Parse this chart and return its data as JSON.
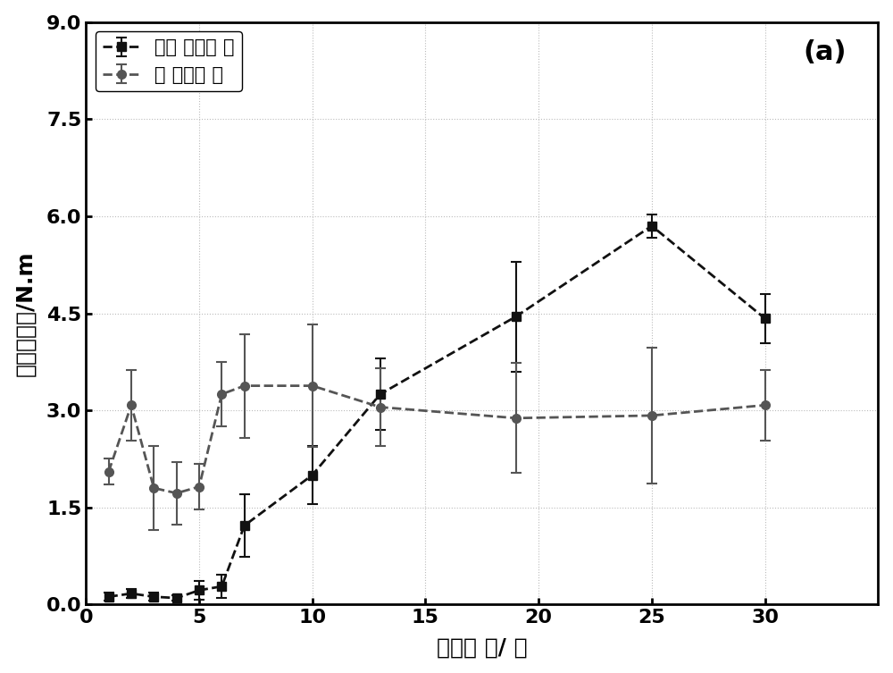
{
  "title_label": "(a)",
  "xlabel": "固化时 间/ 天",
  "ylabel": "平均破坏力/N.m",
  "xlim": [
    0,
    35
  ],
  "ylim": [
    0,
    9.0
  ],
  "xticks": [
    0,
    5,
    10,
    15,
    20,
    25,
    30
  ],
  "yticks": [
    0.0,
    1.5,
    3.0,
    4.5,
    6.0,
    7.5,
    9.0
  ],
  "series1_label": "未包 覆密封 胶",
  "series1_x": [
    1,
    2,
    3,
    4,
    5,
    6,
    7,
    10,
    13,
    19,
    25,
    30
  ],
  "series1_y": [
    0.12,
    0.17,
    0.12,
    0.1,
    0.22,
    0.28,
    1.22,
    2.0,
    3.25,
    4.45,
    5.85,
    4.42
  ],
  "series1_yerr": [
    0.06,
    0.07,
    0.06,
    0.04,
    0.15,
    0.18,
    0.48,
    0.45,
    0.55,
    0.85,
    0.18,
    0.38
  ],
  "series2_label": "包 覆密封 胶",
  "series2_x": [
    1,
    2,
    3,
    4,
    5,
    6,
    7,
    10,
    13,
    19,
    25,
    30
  ],
  "series2_y": [
    2.05,
    3.08,
    1.8,
    1.72,
    1.82,
    3.25,
    3.38,
    3.38,
    3.05,
    2.88,
    2.92,
    3.08
  ],
  "series2_yerr": [
    0.2,
    0.55,
    0.65,
    0.48,
    0.35,
    0.5,
    0.8,
    0.95,
    0.6,
    0.85,
    1.05,
    0.55
  ],
  "series1_color": "#111111",
  "series2_color": "#555555",
  "background_color": "#ffffff",
  "grid_color": "#bbbbbb",
  "fontsize_label": 18,
  "fontsize_tick": 16,
  "fontsize_legend": 15,
  "fontsize_annotation": 22
}
